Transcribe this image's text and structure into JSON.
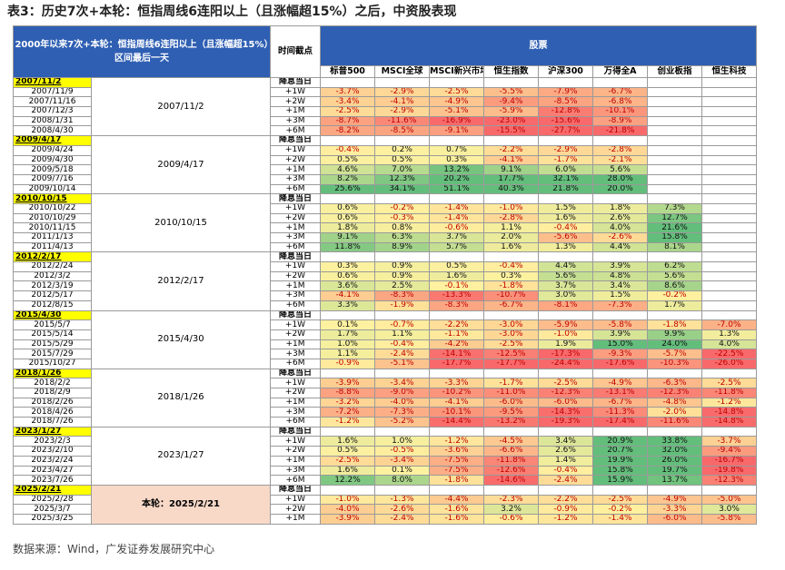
{
  "title": "表3：历史7次+本轮：恒指周线6连阳以上（且涨幅超15%）之后，中资股表现",
  "header": {
    "range": "2000年以来7次+本轮：恒指周线6连阳以上（且涨幅超15%）区间最后一天",
    "time": "时间截点",
    "group": "股票",
    "columns": [
      "标普500",
      "MSCI全球",
      "MSCI新兴市场",
      "恒生指数",
      "沪深300",
      "万得全A",
      "创业板指",
      "恒生科技"
    ]
  },
  "groups": [
    {
      "date": "2007/11/2",
      "event": "降息当日",
      "label": "2007/11/2",
      "rows": [
        {
          "date": "2007/11/9",
          "offset": "+1W",
          "values": [
            "-3.7%",
            "-2.9%",
            "-2.5%",
            "-5.5%",
            "-7.9%",
            "-6.7%",
            null,
            null
          ]
        },
        {
          "date": "2007/11/16",
          "offset": "+2W",
          "values": [
            "-3.4%",
            "-4.1%",
            "-4.9%",
            "-9.4%",
            "-8.5%",
            "-6.8%",
            null,
            null
          ]
        },
        {
          "date": "2007/12/3",
          "offset": "+1M",
          "values": [
            "-2.5%",
            "-2.9%",
            "-5.1%",
            "-5.9%",
            "-12.8%",
            "-10.1%",
            null,
            null
          ]
        },
        {
          "date": "2008/1/31",
          "offset": "+3M",
          "values": [
            "-8.7%",
            "-11.6%",
            "-16.9%",
            "-23.0%",
            "-15.6%",
            "-8.9%",
            null,
            null
          ]
        },
        {
          "date": "2008/4/30",
          "offset": "+6M",
          "values": [
            "-8.2%",
            "-8.5%",
            "-9.1%",
            "-15.5%",
            "-27.7%",
            "-21.8%",
            null,
            null
          ]
        }
      ]
    },
    {
      "date": "2009/4/17",
      "event": "降息当日",
      "label": "2009/4/17",
      "rows": [
        {
          "date": "2009/4/24",
          "offset": "+1W",
          "values": [
            "-0.4%",
            "0.2%",
            "0.7%",
            "-2.2%",
            "-2.9%",
            "-2.8%",
            null,
            null
          ]
        },
        {
          "date": "2009/4/30",
          "offset": "+2W",
          "values": [
            "0.5%",
            "0.5%",
            "0.3%",
            "-4.1%",
            "-1.7%",
            "-2.1%",
            null,
            null
          ]
        },
        {
          "date": "2009/5/18",
          "offset": "+1M",
          "values": [
            "4.6%",
            "7.0%",
            "13.2%",
            "9.1%",
            "6.0%",
            "5.6%",
            null,
            null
          ]
        },
        {
          "date": "2009/7/16",
          "offset": "+3M",
          "values": [
            "8.2%",
            "12.3%",
            "20.2%",
            "17.7%",
            "32.1%",
            "28.0%",
            null,
            null
          ]
        },
        {
          "date": "2009/10/14",
          "offset": "+6M",
          "values": [
            "25.6%",
            "34.1%",
            "51.1%",
            "40.3%",
            "21.8%",
            "20.0%",
            null,
            null
          ]
        }
      ]
    },
    {
      "date": "2010/10/15",
      "event": "降息当日",
      "label": "2010/10/15",
      "rows": [
        {
          "date": "2010/10/22",
          "offset": "+1W",
          "values": [
            "0.6%",
            "-0.2%",
            "-1.4%",
            "-1.0%",
            "1.5%",
            "1.8%",
            "7.3%",
            null
          ]
        },
        {
          "date": "2010/10/29",
          "offset": "+2W",
          "values": [
            "0.6%",
            "-0.3%",
            "-1.4%",
            "-2.8%",
            "1.6%",
            "2.6%",
            "12.7%",
            null
          ]
        },
        {
          "date": "2010/11/15",
          "offset": "+1M",
          "values": [
            "1.8%",
            "0.8%",
            "-0.6%",
            "1.1%",
            "-0.4%",
            "4.0%",
            "21.6%",
            null
          ]
        },
        {
          "date": "2011/1/13",
          "offset": "+3M",
          "values": [
            "9.1%",
            "6.3%",
            "3.7%",
            "2.0%",
            "-5.6%",
            "-2.6%",
            "15.8%",
            null
          ]
        },
        {
          "date": "2011/4/13",
          "offset": "+6M",
          "values": [
            "11.8%",
            "8.9%",
            "5.7%",
            "1.6%",
            "1.3%",
            "4.4%",
            "8.1%",
            null
          ]
        }
      ]
    },
    {
      "date": "2012/2/17",
      "event": "降息当日",
      "label": "2012/2/17",
      "rows": [
        {
          "date": "2012/2/24",
          "offset": "+1W",
          "values": [
            "0.3%",
            "0.9%",
            "0.5%",
            "-0.4%",
            "4.4%",
            "3.9%",
            "6.2%",
            null
          ]
        },
        {
          "date": "2012/3/2",
          "offset": "+2W",
          "values": [
            "0.6%",
            "0.9%",
            "1.6%",
            "0.3%",
            "5.6%",
            "4.8%",
            "5.6%",
            null
          ]
        },
        {
          "date": "2012/3/19",
          "offset": "+1M",
          "values": [
            "3.6%",
            "2.5%",
            "-0.1%",
            "-1.8%",
            "3.7%",
            "3.4%",
            "8.6%",
            null
          ]
        },
        {
          "date": "2012/5/17",
          "offset": "+3M",
          "values": [
            "-4.1%",
            "-8.3%",
            "-13.3%",
            "-10.7%",
            "3.0%",
            "1.5%",
            "-0.2%",
            null
          ]
        },
        {
          "date": "2012/8/15",
          "offset": "+6M",
          "values": [
            "3.3%",
            "-1.9%",
            "-8.3%",
            "-6.7%",
            "-8.1%",
            "-7.3%",
            "1.7%",
            null
          ]
        }
      ]
    },
    {
      "date": "2015/4/30",
      "event": "降息当日",
      "label": "2015/4/30",
      "rows": [
        {
          "date": "2015/5/7",
          "offset": "+1W",
          "values": [
            "0.1%",
            "-0.7%",
            "-2.2%",
            "-3.0%",
            "-5.9%",
            "-5.8%",
            "-1.8%",
            "-7.0%"
          ]
        },
        {
          "date": "2015/5/14",
          "offset": "+2W",
          "values": [
            "1.7%",
            "1.1%",
            "-1.1%",
            "-3.0%",
            "-1.0%",
            "3.9%",
            "9.9%",
            "1.3%"
          ]
        },
        {
          "date": "2015/5/29",
          "offset": "+1M",
          "values": [
            "1.0%",
            "-0.4%",
            "-4.2%",
            "-2.5%",
            "1.9%",
            "15.0%",
            "24.0%",
            "4.0%"
          ]
        },
        {
          "date": "2015/7/29",
          "offset": "+3M",
          "values": [
            "1.1%",
            "-2.4%",
            "-14.1%",
            "-12.5%",
            "-17.3%",
            "-9.3%",
            "-5.7%",
            "-22.5%"
          ]
        },
        {
          "date": "2015/10/27",
          "offset": "+6M",
          "values": [
            "-0.9%",
            "-5.1%",
            "-17.7%",
            "-17.7%",
            "-24.4%",
            "-17.6%",
            "-10.3%",
            "-26.0%"
          ]
        }
      ]
    },
    {
      "date": "2018/1/26",
      "event": "降息当日",
      "label": "2018/1/26",
      "rows": [
        {
          "date": "2018/2/2",
          "offset": "+1W",
          "values": [
            "-3.9%",
            "-3.4%",
            "-3.3%",
            "-1.7%",
            "-2.5%",
            "-4.9%",
            "-6.3%",
            "-2.5%"
          ]
        },
        {
          "date": "2018/2/9",
          "offset": "+2W",
          "values": [
            "-8.8%",
            "-9.0%",
            "-10.2%",
            "-11.0%",
            "-12.3%",
            "-13.1%",
            "-12.3%",
            "-11.8%"
          ]
        },
        {
          "date": "2018/2/26",
          "offset": "+1M",
          "values": [
            "-3.2%",
            "-4.0%",
            "-4.1%",
            "-6.0%",
            "-6.0%",
            "-6.7%",
            "-4.8%",
            "-1.2%"
          ]
        },
        {
          "date": "2018/4/26",
          "offset": "+3M",
          "values": [
            "-7.2%",
            "-7.3%",
            "-10.1%",
            "-9.5%",
            "-14.3%",
            "-11.3%",
            "-2.0%",
            "-14.8%"
          ]
        },
        {
          "date": "2018/7/26",
          "offset": "+6M",
          "values": [
            "-1.2%",
            "-5.2%",
            "-14.4%",
            "-13.2%",
            "-19.3%",
            "-17.4%",
            "-11.6%",
            "-14.8%"
          ]
        }
      ]
    },
    {
      "date": "2023/1/27",
      "event": "降息当日",
      "label": "2023/1/27",
      "rows": [
        {
          "date": "2023/2/3",
          "offset": "+1W",
          "values": [
            "1.6%",
            "1.0%",
            "-1.2%",
            "-4.5%",
            "3.4%",
            "20.9%",
            "33.8%",
            "-3.7%"
          ]
        },
        {
          "date": "2023/2/10",
          "offset": "+2W",
          "values": [
            "0.5%",
            "-0.5%",
            "-3.6%",
            "-6.6%",
            "2.6%",
            "20.7%",
            "32.0%",
            "-9.4%"
          ]
        },
        {
          "date": "2023/2/24",
          "offset": "+1M",
          "values": [
            "-2.5%",
            "-3.4%",
            "-7.5%",
            "-11.8%",
            "1.4%",
            "19.9%",
            "26.0%",
            "-16.7%"
          ]
        },
        {
          "date": "2023/4/27",
          "offset": "+3M",
          "values": [
            "1.6%",
            "0.1%",
            "-7.5%",
            "-12.6%",
            "-0.4%",
            "15.8%",
            "19.7%",
            "-19.8%"
          ]
        },
        {
          "date": "2023/7/26",
          "offset": "+6M",
          "values": [
            "12.2%",
            "8.0%",
            "-1.8%",
            "-14.6%",
            "-2.4%",
            "15.9%",
            "13.7%",
            "-12.3%"
          ]
        }
      ]
    },
    {
      "date": "2025/2/21",
      "event": "降息当日",
      "label": "本轮：2025/2/21",
      "rows": [
        {
          "date": "2025/2/28",
          "offset": "+1W",
          "values": [
            "-1.0%",
            "-1.3%",
            "-4.4%",
            "-2.3%",
            "-2.2%",
            "-2.5%",
            "-4.9%",
            "-5.0%"
          ]
        },
        {
          "date": "2025/3/7",
          "offset": "+2W",
          "values": [
            "-4.0%",
            "-2.6%",
            "-1.6%",
            "3.2%",
            "-0.9%",
            "-0.2%",
            "-3.3%",
            "3.0%"
          ]
        },
        {
          "date": "2025/3/25",
          "offset": "+1M",
          "values": [
            "-3.9%",
            "-2.4%",
            "-1.6%",
            "-0.6%",
            "-1.2%",
            "-1.4%",
            "-6.0%",
            "-5.8%"
          ]
        }
      ]
    }
  ],
  "source": "数据来源：Wind，广发证券发展研究中心"
}
